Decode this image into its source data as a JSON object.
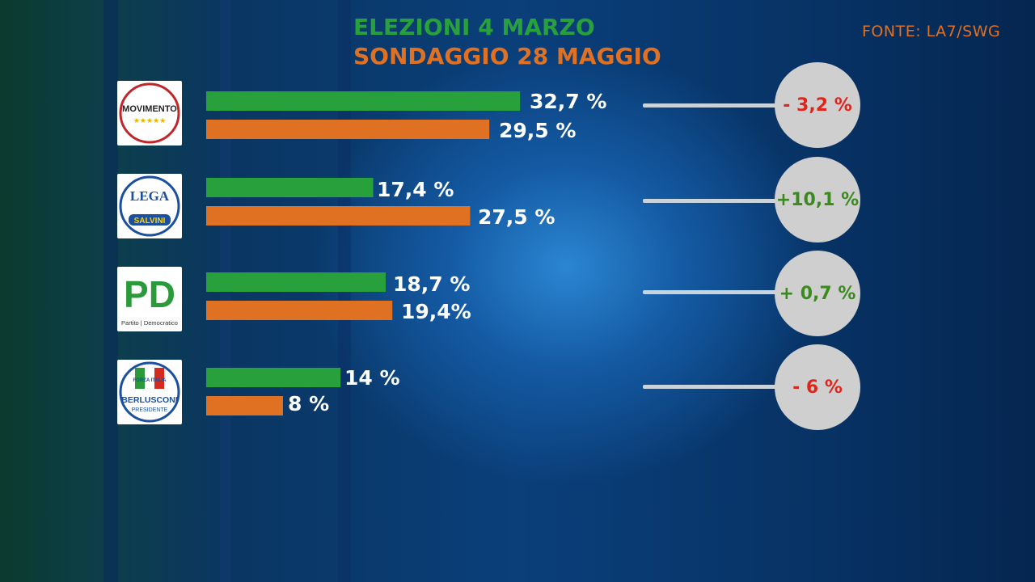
{
  "legend": {
    "series_a": "ELEZIONI 4 MARZO",
    "series_b": "SONDAGGIO 28 MAGGIO"
  },
  "source": "FONTE: LA7/SWG",
  "colors": {
    "series_a": "#28a03c",
    "series_b": "#e07022",
    "negative": "#e0261c",
    "positive": "#3a8a1e"
  },
  "chart_data": {
    "type": "bar",
    "orientation": "horizontal",
    "categories": [
      "MoVimento 5 Stelle",
      "Lega - Salvini Premier",
      "Partito Democratico",
      "Forza Italia - Berlusconi Presidente"
    ],
    "series": [
      {
        "name": "ELEZIONI 4 MARZO",
        "values": [
          32.7,
          17.4,
          18.7,
          14
        ]
      },
      {
        "name": "SONDAGGIO 28 MAGGIO",
        "values": [
          29.5,
          27.5,
          19.4,
          8
        ]
      }
    ],
    "xlim": [
      0,
      36
    ]
  },
  "parties": [
    {
      "logo_text": "MOVIMENTO",
      "logo_sub": "★★★★★",
      "logo_icon": "m5s-logo",
      "label_a": "32,7 %",
      "label_b": "29,5 %",
      "change": "- 3,2 %",
      "change_sign": "neg"
    },
    {
      "logo_text": "LEGA",
      "logo_sub": "SALVINI",
      "logo_icon": "lega-logo",
      "label_a": "17,4 %",
      "label_b": "27,5 %",
      "change": "+10,1 %",
      "change_sign": "pos"
    },
    {
      "logo_text": "PD",
      "logo_sub": "Partito | Democratico",
      "logo_icon": "pd-logo",
      "label_a": "18,7 %",
      "label_b": "19,4%",
      "change": "+ 0,7 %",
      "change_sign": "pos"
    },
    {
      "logo_text": "FORZA ITALIA",
      "logo_sub": "BERLUSCONI",
      "logo_sub2": "PRESIDENTE",
      "logo_icon": "forza-italia-logo",
      "label_a": "14 %",
      "label_b": "8 %",
      "change": "- 6 %",
      "change_sign": "neg"
    }
  ]
}
